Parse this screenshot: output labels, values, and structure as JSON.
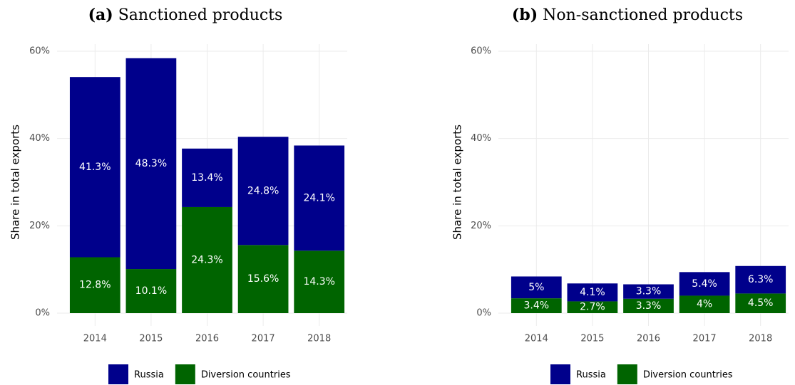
{
  "chart_data": [
    {
      "type": "stacked_bar",
      "panel": "(a)",
      "title": "Sanctioned products",
      "y_label": "Share in total exports",
      "categories": [
        "2014",
        "2015",
        "2016",
        "2017",
        "2018"
      ],
      "series": [
        {
          "name": "Diversion countries",
          "color": "#006400",
          "values": [
            12.8,
            10.1,
            24.3,
            15.6,
            14.3
          ],
          "value_labels": [
            "12.8%",
            "10.1%",
            "24.3%",
            "15.6%",
            "14.3%"
          ]
        },
        {
          "name": "Russia",
          "color": "#00008b",
          "values": [
            41.3,
            48.3,
            13.4,
            24.8,
            24.1
          ],
          "value_labels": [
            "41.3%",
            "48.3%",
            "13.4%",
            "24.8%",
            "24.1%"
          ]
        }
      ],
      "ylim": [
        0,
        60
      ],
      "yticks": [
        {
          "value": 0,
          "label": "0%"
        },
        {
          "value": 20,
          "label": "20%"
        },
        {
          "value": 40,
          "label": "40%"
        },
        {
          "value": 60,
          "label": "60%"
        }
      ],
      "grid": true,
      "legend": "bottom"
    },
    {
      "type": "stacked_bar",
      "panel": "(b)",
      "title": "Non-sanctioned products",
      "y_label": "Share in total exports",
      "categories": [
        "2014",
        "2015",
        "2016",
        "2017",
        "2018"
      ],
      "series": [
        {
          "name": "Diversion countries",
          "color": "#006400",
          "values": [
            3.4,
            2.7,
            3.3,
            4,
            4.5
          ],
          "value_labels": [
            "3.4%",
            "2.7%",
            "3.3%",
            "4%",
            "4.5%"
          ]
        },
        {
          "name": "Russia",
          "color": "#00008b",
          "values": [
            5,
            4.1,
            3.3,
            5.4,
            6.3
          ],
          "value_labels": [
            "5%",
            "4.1%",
            "3.3%",
            "5.4%",
            "6.3%"
          ]
        }
      ],
      "ylim": [
        0,
        60
      ],
      "yticks": [
        {
          "value": 0,
          "label": "0%"
        },
        {
          "value": 20,
          "label": "20%"
        },
        {
          "value": 40,
          "label": "40%"
        },
        {
          "value": 60,
          "label": "60%"
        }
      ],
      "grid": true,
      "legend": "bottom"
    }
  ]
}
